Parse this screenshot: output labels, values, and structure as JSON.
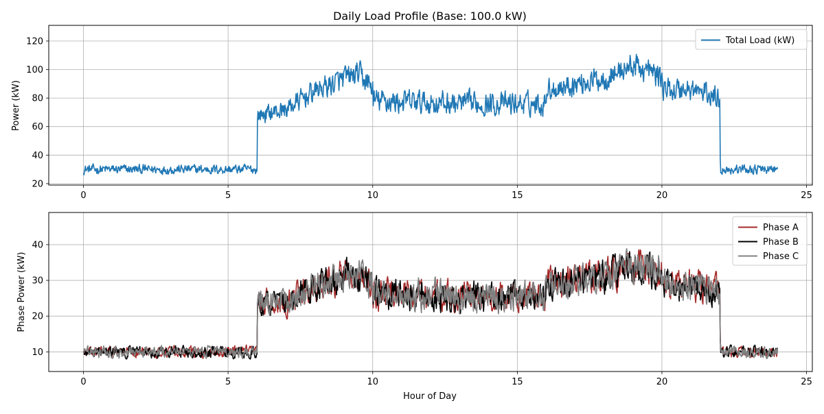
{
  "chart_data": [
    {
      "type": "line",
      "title": "Daily Load Profile (Base: 100.0 kW)",
      "xlabel": "",
      "ylabel": "Power (kW)",
      "xlim": [
        -1.2,
        25.2
      ],
      "ylim": [
        19,
        131
      ],
      "x_ticks": [
        0,
        5,
        10,
        15,
        20,
        25
      ],
      "y_ticks": [
        20,
        40,
        60,
        80,
        100,
        120
      ],
      "grid": true,
      "legend_position": "top-right",
      "resolution_minutes": 1,
      "series": [
        {
          "name": "Total Load (kW)",
          "color": "#1f77b4",
          "profile": [
            [
              0,
              30
            ],
            [
              6,
              30
            ],
            [
              6.02,
              68
            ],
            [
              7,
              72
            ],
            [
              8,
              85
            ],
            [
              9,
              93
            ],
            [
              9.5,
              97
            ],
            [
              10,
              87
            ],
            [
              10.02,
              78
            ],
            [
              13,
              76
            ],
            [
              15.95,
              76
            ],
            [
              16,
              86
            ],
            [
              18,
              94
            ],
            [
              19,
              103
            ],
            [
              20,
              95
            ],
            [
              20.02,
              86
            ],
            [
              21,
              86
            ],
            [
              22,
              80
            ],
            [
              22.02,
              30
            ],
            [
              24,
              30
            ]
          ],
          "noise_amplitude": [
            [
              0,
              5
            ],
            [
              6,
              5
            ],
            [
              6.02,
              9
            ],
            [
              9,
              13
            ],
            [
              10,
              13
            ],
            [
              16,
              12
            ],
            [
              19,
              13
            ],
            [
              22,
              12
            ],
            [
              22.02,
              5
            ],
            [
              24,
              5
            ]
          ]
        }
      ]
    },
    {
      "type": "line",
      "title": "",
      "xlabel": "Hour of Day",
      "ylabel": "Phase Power (kW)",
      "xlim": [
        -1.2,
        25.2
      ],
      "ylim": [
        4.5,
        49
      ],
      "x_ticks": [
        0,
        5,
        10,
        15,
        20,
        25
      ],
      "y_ticks": [
        10,
        20,
        30,
        40
      ],
      "grid": true,
      "legend_position": "top-right",
      "resolution_minutes": 1,
      "series": [
        {
          "name": "Phase A",
          "color": "#a52a2a",
          "profile": [
            [
              0,
              10
            ],
            [
              6,
              10
            ],
            [
              6.02,
              24
            ],
            [
              7,
              24
            ],
            [
              8,
              28
            ],
            [
              9,
              31
            ],
            [
              9.5,
              32
            ],
            [
              10,
              29
            ],
            [
              10.02,
              26
            ],
            [
              13,
              25.5
            ],
            [
              15.95,
              25.5
            ],
            [
              16,
              29
            ],
            [
              18,
              31
            ],
            [
              19,
              34
            ],
            [
              20,
              32
            ],
            [
              20.02,
              28.5
            ],
            [
              21,
              28.5
            ],
            [
              22,
              27
            ],
            [
              22.02,
              10
            ],
            [
              24,
              10
            ]
          ],
          "noise_amplitude": [
            [
              0,
              2.3
            ],
            [
              6,
              2.3
            ],
            [
              6.02,
              5
            ],
            [
              9,
              6.5
            ],
            [
              10,
              6.5
            ],
            [
              16,
              6
            ],
            [
              19,
              7
            ],
            [
              22,
              6
            ],
            [
              22.02,
              2.3
            ],
            [
              24,
              2.3
            ]
          ]
        },
        {
          "name": "Phase B",
          "color": "#000000",
          "profile": [
            [
              0,
              10
            ],
            [
              6,
              10
            ],
            [
              6.02,
              24
            ],
            [
              7,
              24
            ],
            [
              8,
              28
            ],
            [
              9,
              31
            ],
            [
              9.5,
              32
            ],
            [
              10,
              29
            ],
            [
              10.02,
              26
            ],
            [
              13,
              25.5
            ],
            [
              15.95,
              25.5
            ],
            [
              16,
              29
            ],
            [
              18,
              31
            ],
            [
              19,
              34
            ],
            [
              20,
              32
            ],
            [
              20.02,
              28.5
            ],
            [
              21,
              28.5
            ],
            [
              22,
              27
            ],
            [
              22.02,
              10
            ],
            [
              24,
              10
            ]
          ],
          "noise_amplitude": [
            [
              0,
              2.3
            ],
            [
              6,
              2.3
            ],
            [
              6.02,
              5
            ],
            [
              9,
              6.5
            ],
            [
              10,
              6.5
            ],
            [
              16,
              6
            ],
            [
              19,
              7
            ],
            [
              22,
              6
            ],
            [
              22.02,
              2.3
            ],
            [
              24,
              2.3
            ]
          ]
        },
        {
          "name": "Phase C",
          "color": "#808080",
          "profile": [
            [
              0,
              10
            ],
            [
              6,
              10
            ],
            [
              6.02,
              24
            ],
            [
              7,
              24
            ],
            [
              8,
              28
            ],
            [
              9,
              31
            ],
            [
              9.5,
              32
            ],
            [
              10,
              29
            ],
            [
              10.02,
              26
            ],
            [
              13,
              25.5
            ],
            [
              15.95,
              25.5
            ],
            [
              16,
              29
            ],
            [
              18,
              31
            ],
            [
              19,
              34
            ],
            [
              20,
              32
            ],
            [
              20.02,
              28.5
            ],
            [
              21,
              28.5
            ],
            [
              22,
              27
            ],
            [
              22.02,
              10
            ],
            [
              24,
              10
            ]
          ],
          "noise_amplitude": [
            [
              0,
              2.3
            ],
            [
              6,
              2.3
            ],
            [
              6.02,
              5
            ],
            [
              9,
              6.5
            ],
            [
              10,
              6.5
            ],
            [
              16,
              6
            ],
            [
              19,
              7
            ],
            [
              22,
              6
            ],
            [
              22.02,
              2.3
            ],
            [
              24,
              2.3
            ]
          ]
        }
      ]
    }
  ]
}
